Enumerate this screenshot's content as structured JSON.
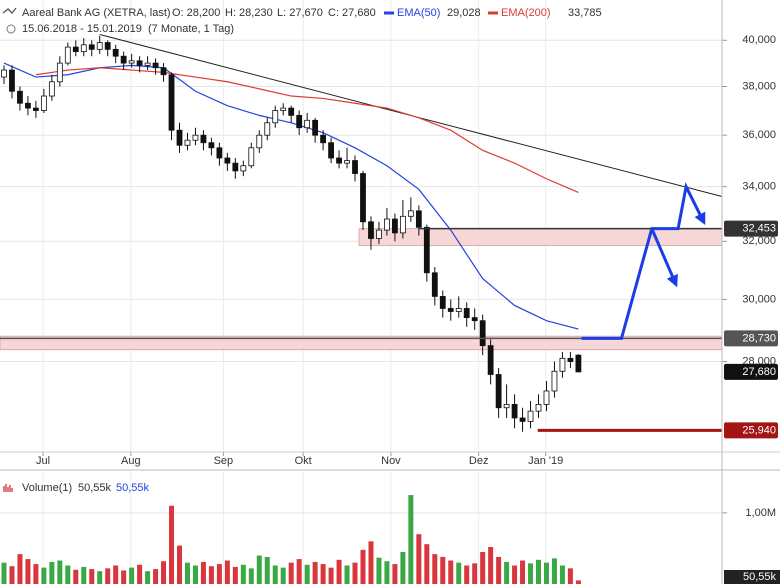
{
  "chart_data": {
    "type": "candlestick",
    "title": "Aareal Bank AG (XETRA, last)",
    "ohlc_header": [
      "O: 28,200",
      "H: 28,230",
      "L: 27,670",
      "C: 27,680"
    ],
    "range": "15.06.2018 - 15.01.2019",
    "period": "(7 Monate, 1 Tag)",
    "log": true,
    "grid": true,
    "xlim": [
      -0.5,
      90
    ],
    "xticks": [
      {
        "value": 4.9,
        "label": "Jul"
      },
      {
        "value": 15.9,
        "label": "Aug"
      },
      {
        "value": 27.5,
        "label": "Sep"
      },
      {
        "value": 37.5,
        "label": "Okt"
      },
      {
        "value": 48.5,
        "label": "Nov"
      },
      {
        "value": 59.5,
        "label": "Dez"
      },
      {
        "value": 67.9,
        "label": "Jan '19"
      }
    ],
    "ylim": [
      25325,
      41830
    ],
    "yticks": [
      {
        "value": 28000,
        "label": "28,000"
      },
      {
        "value": 30000,
        "label": "30,000"
      },
      {
        "value": 32000,
        "label": "32,000"
      },
      {
        "value": 34000,
        "label": "34,000"
      },
      {
        "value": 36000,
        "label": "36,000"
      },
      {
        "value": 38000,
        "label": "38,000"
      },
      {
        "value": 40000,
        "label": "40,000"
      }
    ],
    "ohlc": [
      [
        38400,
        38900,
        38100,
        38700
      ],
      [
        38700,
        38900,
        37500,
        37800
      ],
      [
        37800,
        38000,
        37000,
        37300
      ],
      [
        37300,
        37600,
        36800,
        37100
      ],
      [
        37100,
        37400,
        36700,
        37000
      ],
      [
        37000,
        37900,
        36900,
        37600
      ],
      [
        37600,
        38500,
        37400,
        38200
      ],
      [
        38200,
        39300,
        38000,
        39000
      ],
      [
        39000,
        39900,
        38900,
        39700
      ],
      [
        39700,
        40000,
        39300,
        39500
      ],
      [
        39500,
        40100,
        39300,
        39800
      ],
      [
        39800,
        40000,
        39300,
        39600
      ],
      [
        39600,
        40200,
        39400,
        39900
      ],
      [
        39900,
        40000,
        39300,
        39600
      ],
      [
        39600,
        39800,
        39000,
        39300
      ],
      [
        39300,
        39500,
        38700,
        39000
      ],
      [
        39000,
        39400,
        38800,
        39100
      ],
      [
        39100,
        39300,
        38600,
        38900
      ],
      [
        38900,
        39300,
        38700,
        39000
      ],
      [
        39000,
        39200,
        38500,
        38800
      ],
      [
        38800,
        39000,
        38200,
        38500
      ],
      [
        38500,
        38600,
        35800,
        36200
      ],
      [
        36200,
        36500,
        35300,
        35600
      ],
      [
        35600,
        36100,
        35400,
        35800
      ],
      [
        35800,
        36300,
        35600,
        36000
      ],
      [
        36000,
        36200,
        35400,
        35700
      ],
      [
        35700,
        35900,
        35200,
        35500
      ],
      [
        35500,
        35700,
        34800,
        35100
      ],
      [
        35100,
        35300,
        34600,
        34900
      ],
      [
        34900,
        35100,
        34300,
        34600
      ],
      [
        34600,
        35000,
        34400,
        34800
      ],
      [
        34800,
        35700,
        34700,
        35500
      ],
      [
        35500,
        36200,
        35300,
        36000
      ],
      [
        36000,
        36700,
        35800,
        36500
      ],
      [
        36500,
        37200,
        36300,
        37000
      ],
      [
        37000,
        37300,
        36800,
        37100
      ],
      [
        37100,
        37200,
        36500,
        36800
      ],
      [
        36800,
        37000,
        36000,
        36300
      ],
      [
        36300,
        36900,
        36100,
        36600
      ],
      [
        36600,
        36700,
        35700,
        36000
      ],
      [
        36000,
        36200,
        35400,
        35700
      ],
      [
        35700,
        35900,
        34900,
        35100
      ],
      [
        35100,
        35400,
        34700,
        34900
      ],
      [
        34900,
        35500,
        34700,
        35000
      ],
      [
        35000,
        35200,
        34200,
        34500
      ],
      [
        34500,
        34600,
        32400,
        32700
      ],
      [
        32700,
        32900,
        31700,
        32100
      ],
      [
        32100,
        32700,
        31900,
        32400
      ],
      [
        32400,
        33200,
        32200,
        32800
      ],
      [
        32800,
        33000,
        32000,
        32300
      ],
      [
        32300,
        33500,
        32100,
        32900
      ],
      [
        32900,
        33600,
        32700,
        33100
      ],
      [
        33100,
        33300,
        32200,
        32500
      ],
      [
        32500,
        32600,
        30600,
        30900
      ],
      [
        30900,
        31100,
        29800,
        30100
      ],
      [
        30100,
        30300,
        29400,
        29700
      ],
      [
        29700,
        30000,
        29300,
        29600
      ],
      [
        29600,
        30100,
        29400,
        29700
      ],
      [
        29700,
        29900,
        29100,
        29400
      ],
      [
        29400,
        29700,
        29000,
        29300
      ],
      [
        29300,
        29500,
        28200,
        28500
      ],
      [
        28500,
        28700,
        27300,
        27600
      ],
      [
        27600,
        27800,
        26300,
        26600
      ],
      [
        26600,
        27300,
        26300,
        26700
      ],
      [
        26700,
        27000,
        26000,
        26300
      ],
      [
        26300,
        26600,
        25900,
        26200
      ],
      [
        26200,
        26800,
        26000,
        26500
      ],
      [
        26500,
        27000,
        26300,
        26700
      ],
      [
        26700,
        27400,
        26500,
        27100
      ],
      [
        27100,
        28000,
        26900,
        27700
      ],
      [
        27700,
        28300,
        27500,
        28100
      ],
      [
        28100,
        28300,
        27800,
        28000
      ],
      [
        28200,
        28230,
        27670,
        27680
      ]
    ],
    "series": [
      {
        "name": "EMA(50)",
        "color": "#2244dd",
        "last_label": "29,028",
        "x": [
          0,
          4,
          8,
          12,
          16,
          20,
          24,
          28,
          32,
          36,
          40,
          44,
          48,
          52,
          56,
          60,
          64,
          68,
          72
        ],
        "values": [
          39000,
          38400,
          38500,
          38800,
          38900,
          38800,
          37800,
          37200,
          36800,
          36500,
          36100,
          35500,
          34800,
          33900,
          32400,
          30700,
          29800,
          29300,
          29028
        ]
      },
      {
        "name": "EMA(200)",
        "color": "#dd3b30",
        "last_label": "33,785",
        "x": [
          4,
          8,
          12,
          16,
          20,
          24,
          28,
          32,
          36,
          40,
          44,
          48,
          52,
          56,
          60,
          64,
          68,
          72
        ],
        "values": [
          38500,
          38700,
          38800,
          38700,
          38600,
          38400,
          38200,
          37900,
          37600,
          37500,
          37300,
          37100,
          36700,
          36200,
          35400,
          34900,
          34300,
          33785
        ]
      }
    ],
    "trendline": {
      "x": [
        12,
        90
      ],
      "y": [
        40260,
        33630
      ],
      "color": "#222222"
    },
    "zones": [
      {
        "start": 44.5,
        "low": 31850,
        "high": 32453,
        "color": "#f6d6d6"
      },
      {
        "start": -0.5,
        "low": 28370,
        "high": 28800,
        "color": "#f6d6d6"
      }
    ],
    "levels": [
      {
        "value": 32453,
        "label": "32,453",
        "start": 52,
        "color": "#333333"
      },
      {
        "value": 28730,
        "label": "28,730",
        "start": -0.5,
        "color": "#555555"
      },
      {
        "value": 27680,
        "label": "27,680",
        "color": "#111111"
      },
      {
        "value": 25940,
        "label": "25,940",
        "start": 66.9,
        "color": "#a31515"
      }
    ],
    "projection": [
      {
        "x": [
          72.4,
          77.4,
          81.2,
          84.5,
          85.5,
          87.7
        ],
        "y": [
          28730,
          28730,
          32453,
          32453,
          34000,
          32700
        ]
      },
      {
        "x": [
          81.2,
          84.2
        ],
        "y": [
          32453,
          30520
        ]
      }
    ],
    "projection_color": "#1a3de8",
    "volume": {
      "name": "Volume(1)",
      "average_label": "50,55k",
      "last": {
        "value": 50550,
        "label": "50,55k"
      },
      "ylim": [
        0,
        1490000
      ],
      "yticks": [
        {
          "value": 1000000,
          "label": "1,00M"
        }
      ],
      "up_color": "#3aa845",
      "down_color": "#d9363e",
      "values": [
        300000,
        250000,
        420000,
        350000,
        280000,
        230000,
        310000,
        330000,
        260000,
        200000,
        240000,
        210000,
        180000,
        220000,
        260000,
        190000,
        230000,
        270000,
        180000,
        210000,
        320000,
        1100000,
        540000,
        300000,
        260000,
        310000,
        250000,
        280000,
        330000,
        240000,
        270000,
        220000,
        400000,
        380000,
        260000,
        230000,
        300000,
        350000,
        270000,
        310000,
        280000,
        230000,
        340000,
        260000,
        300000,
        480000,
        600000,
        370000,
        320000,
        280000,
        450000,
        1250000,
        700000,
        560000,
        420000,
        380000,
        330000,
        300000,
        260000,
        290000,
        450000,
        520000,
        380000,
        310000,
        260000,
        330000,
        290000,
        340000,
        300000,
        360000,
        260000,
        220000,
        50550
      ]
    }
  }
}
